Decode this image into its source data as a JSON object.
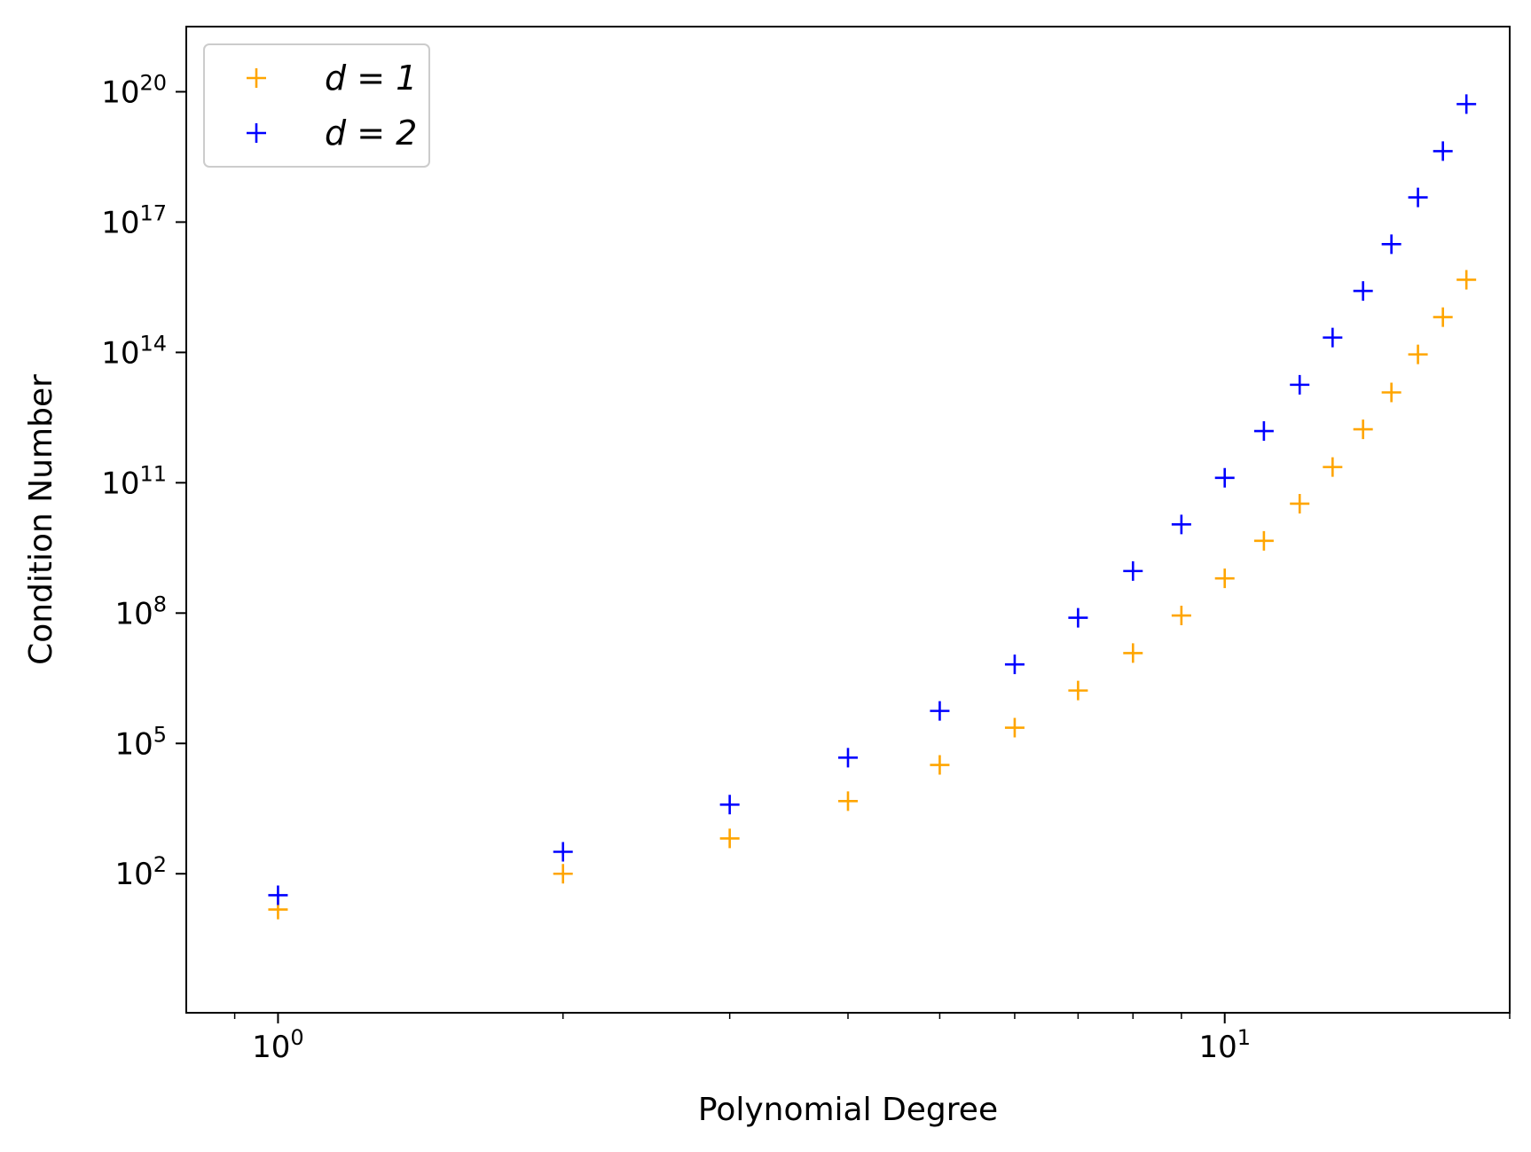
{
  "chart_data": {
    "type": "scatter",
    "xscale": "log",
    "yscale": "log",
    "xlabel": "Polynomial Degree",
    "ylabel": "Condition Number",
    "xlim": [
      0.8,
      20
    ],
    "ylim": [
      0.0631,
      3.16e+21
    ],
    "x_ticks": [
      {
        "value": 1,
        "label": "10",
        "exp": "0"
      },
      {
        "value": 10,
        "label": "10",
        "exp": "1"
      }
    ],
    "y_ticks": [
      {
        "value": 100,
        "label": "10",
        "exp": "2"
      },
      {
        "value": 100000,
        "label": "10",
        "exp": "5"
      },
      {
        "value": 100000000.0,
        "label": "10",
        "exp": "8"
      },
      {
        "value": 100000000000.0,
        "label": "10",
        "exp": "11"
      },
      {
        "value": 100000000000000.0,
        "label": "10",
        "exp": "14"
      },
      {
        "value": 1e+17,
        "label": "10",
        "exp": "17"
      },
      {
        "value": 1e+20,
        "label": "10",
        "exp": "20"
      }
    ],
    "legend_position": "upper left",
    "grid": false,
    "x": [
      1,
      2,
      3,
      4,
      5,
      6,
      7,
      8,
      9,
      10,
      11,
      12,
      13,
      14,
      15,
      16,
      17,
      18
    ],
    "series": [
      {
        "name": "d = 1",
        "legend_label": "d = 1",
        "color": "#ffa500",
        "marker": "+",
        "values": [
          15,
          100,
          650,
          4700,
          32000,
          230000,
          1650000,
          12000000,
          88000000,
          630000000,
          4600000000,
          33000000000,
          230000000000,
          1700000000000,
          12000000000000,
          90000000000000,
          650000000000000,
          4700000000000000
        ]
      },
      {
        "name": "d = 2",
        "legend_label": "d = 2",
        "color": "#0000ff",
        "marker": "+",
        "values": [
          32,
          320,
          3900,
          47000,
          560000,
          6600000,
          78000000,
          930000000,
          11000000000,
          130000000000,
          1550000000000,
          18000000000000,
          220000000000000,
          2600000000000000,
          31000000000000000,
          370000000000000000,
          4300000000000000000,
          52000000000000000000
        ]
      }
    ]
  }
}
